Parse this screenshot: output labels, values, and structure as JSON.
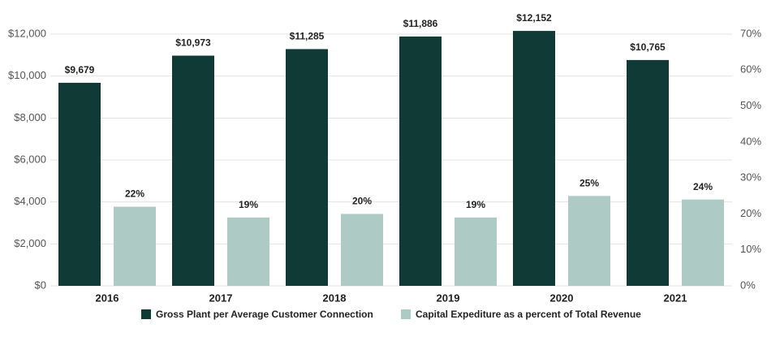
{
  "chart_data": {
    "type": "bar",
    "categories": [
      "2016",
      "2017",
      "2018",
      "2019",
      "2020",
      "2021"
    ],
    "series": [
      {
        "name": "Gross Plant per Average Customer Connection",
        "color": "#0f3a36",
        "axis": "y",
        "values": [
          9679,
          10973,
          11285,
          11886,
          12152,
          10765
        ],
        "value_labels": [
          "$9,679",
          "$10,973",
          "$11,285",
          "$11,886",
          "$12,152",
          "$10,765"
        ]
      },
      {
        "name": "Capital Expediture as a percent of Total Revenue",
        "color": "#adcbc4",
        "axis": "y2",
        "values": [
          22,
          19,
          20,
          19,
          25,
          24
        ],
        "value_labels": [
          "22%",
          "19%",
          "20%",
          "19%",
          "25%",
          "24%"
        ]
      }
    ],
    "ylim": [
      0,
      12000
    ],
    "yticks": [
      {
        "value": 0,
        "label": "$0"
      },
      {
        "value": 2000,
        "label": "$2,000"
      },
      {
        "value": 4000,
        "label": "$4,000"
      },
      {
        "value": 6000,
        "label": "$6,000"
      },
      {
        "value": 8000,
        "label": "$8,000"
      },
      {
        "value": 10000,
        "label": "$10,000"
      },
      {
        "value": 12000,
        "label": "$12,000"
      }
    ],
    "y2lim": [
      0,
      70
    ],
    "y2ticks": [
      {
        "value": 0,
        "label": "0%"
      },
      {
        "value": 10,
        "label": "10%"
      },
      {
        "value": 20,
        "label": "20%"
      },
      {
        "value": 30,
        "label": "30%"
      },
      {
        "value": 40,
        "label": "40%"
      },
      {
        "value": 50,
        "label": "50%"
      },
      {
        "value": 60,
        "label": "60%"
      },
      {
        "value": 70,
        "label": "70%"
      }
    ],
    "grid": true,
    "legend": "bottom"
  }
}
